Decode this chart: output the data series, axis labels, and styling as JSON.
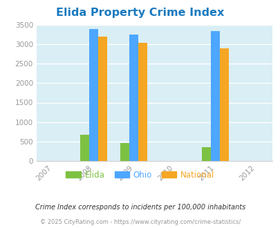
{
  "title": "Elida Property Crime Index",
  "title_color": "#1a7abf",
  "years": [
    2007,
    2008,
    2009,
    2010,
    2011,
    2012
  ],
  "data_years": [
    2008,
    2009,
    2011
  ],
  "elida": [
    680,
    450,
    350
  ],
  "ohio": [
    3400,
    3250,
    3350
  ],
  "national": [
    3200,
    3050,
    2900
  ],
  "elida_color": "#7dc142",
  "ohio_color": "#4da6ff",
  "national_color": "#f5a623",
  "bg_color": "#daeef5",
  "fig_bg": "#ffffff",
  "ylim": [
    0,
    3500
  ],
  "yticks": [
    0,
    500,
    1000,
    1500,
    2000,
    2500,
    3000,
    3500
  ],
  "bar_width": 0.22,
  "footnote1": "Crime Index corresponds to incidents per 100,000 inhabitants",
  "footnote2": "© 2025 CityRating.com - https://www.cityrating.com/crime-statistics/",
  "footnote1_color": "#333333",
  "footnote2_color": "#999999",
  "legend_labels": [
    "Elida",
    "Ohio",
    "National"
  ]
}
